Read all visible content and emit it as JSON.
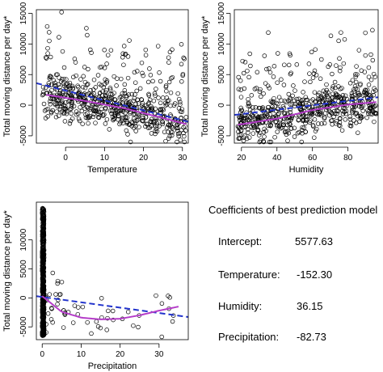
{
  "colors": {
    "points": "#000000",
    "linear_fit": "#2233cc",
    "smooth_fit": "#b43cc8"
  },
  "chart_data": [
    {
      "type": "scatter",
      "xlabel": "Temperature",
      "ylabel": "Total moving distance per day*",
      "xlim": [
        -7.5,
        31.5
      ],
      "ylim": [
        -6200,
        15600
      ],
      "xticks": [
        0,
        10,
        20,
        30
      ],
      "yticks": [
        -5000,
        0,
        5000,
        10000,
        15000
      ],
      "x_range": [
        -6,
        31
      ],
      "y_range": [
        -6000,
        15200
      ],
      "linear_fit": [
        [
          -7.5,
          3600
        ],
        [
          31.5,
          -2700
        ]
      ],
      "smooth_fit": [
        [
          -5,
          1700
        ],
        [
          5,
          700
        ],
        [
          15,
          -500
        ],
        [
          25,
          -2100
        ],
        [
          31,
          -3100
        ]
      ]
    },
    {
      "type": "scatter",
      "xlabel": "Humidity",
      "ylabel": "Total moving distance per day*",
      "xlim": [
        16,
        97
      ],
      "ylim": [
        -6200,
        15600
      ],
      "xticks": [
        20,
        40,
        60,
        80
      ],
      "yticks": [
        -5000,
        0,
        5000,
        10000,
        15000
      ],
      "x_range": [
        18,
        96
      ],
      "y_range": [
        -6000,
        15200
      ],
      "linear_fit": [
        [
          16,
          -1600
        ],
        [
          97,
          1300
        ]
      ],
      "smooth_fit": [
        [
          18,
          -3200
        ],
        [
          40,
          -2200
        ],
        [
          60,
          -800
        ],
        [
          80,
          100
        ],
        [
          96,
          500
        ]
      ]
    },
    {
      "type": "scatter",
      "xlabel": "Precipitation",
      "ylabel": "Total moving distance per day*",
      "xlim": [
        -1.5,
        37.5
      ],
      "ylim": [
        -7200,
        16500
      ],
      "xticks": [
        0,
        10,
        20,
        30
      ],
      "yticks": [
        -5000,
        0,
        5000,
        10000
      ],
      "x_range": [
        0,
        36
      ],
      "y_range": [
        -7000,
        16000
      ],
      "linear_fit": [
        [
          -1.5,
          300
        ],
        [
          37.5,
          -3300
        ]
      ],
      "smooth_fit": [
        [
          0,
          300
        ],
        [
          5,
          -2400
        ],
        [
          10,
          -3400
        ],
        [
          15,
          -3700
        ],
        [
          20,
          -3600
        ],
        [
          25,
          -3000
        ],
        [
          30,
          -2200
        ],
        [
          35,
          -1500
        ]
      ]
    }
  ],
  "coefficients": {
    "title": "Coefficients of best prediction model",
    "rows": [
      {
        "name": "Intercept:",
        "value": "5577.63"
      },
      {
        "name": "Temperature:",
        "value": "-152.30"
      },
      {
        "name": "Humidity:",
        "value": "36.15"
      },
      {
        "name": "Precipitation:",
        "value": "-82.73"
      }
    ]
  }
}
